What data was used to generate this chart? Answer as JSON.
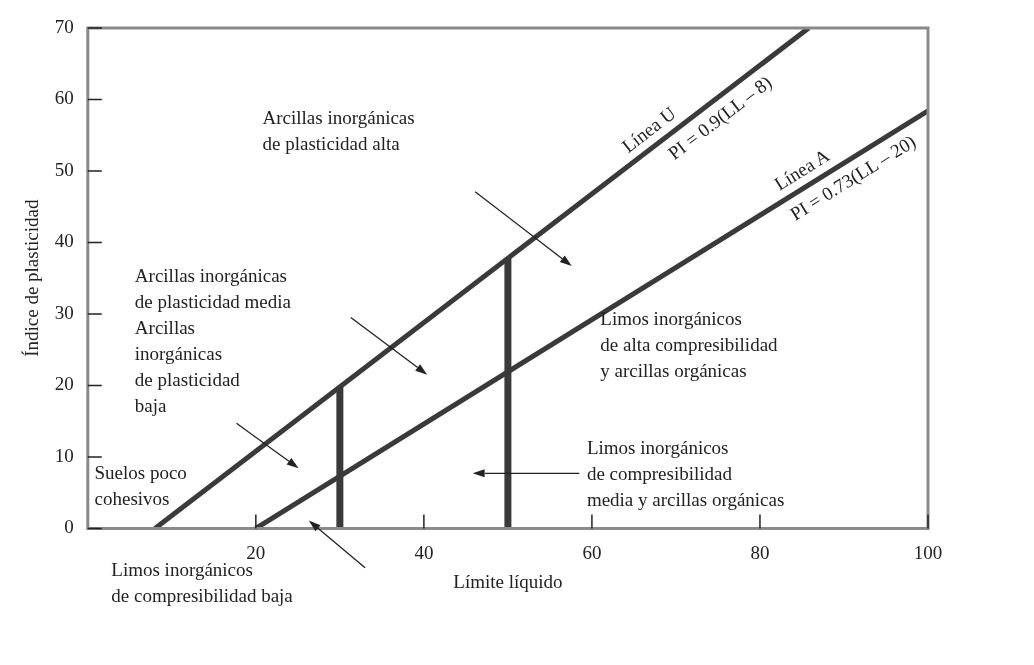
{
  "chart_data": {
    "type": "line",
    "xlabel": "Límite líquido",
    "ylabel": "Índice de plasticidad",
    "xlim": [
      0,
      100
    ],
    "ylim": [
      0,
      70
    ],
    "xticks": [
      20,
      40,
      60,
      80,
      100
    ],
    "yticks": [
      0,
      10,
      20,
      30,
      40,
      50,
      60,
      70
    ],
    "marker": "none",
    "line_style": "solid",
    "series": [
      {
        "name": "Línea U",
        "color": "#3a3a3a",
        "x": [
          8,
          85.8
        ],
        "values": [
          0,
          70
        ]
      },
      {
        "name": "Línea A",
        "color": "#3a3a3a",
        "x": [
          20,
          100
        ],
        "values": [
          0,
          58.4
        ]
      },
      {
        "color": "#3a3a3a",
        "x": [
          30,
          30
        ],
        "values": [
          0,
          19.8
        ]
      },
      {
        "color": "#3a3a3a",
        "x": [
          50,
          50
        ],
        "values": [
          0,
          37.8
        ]
      }
    ],
    "annotations": [
      "Arcillas inorgánicas de plasticidad alta",
      "Arcillas inorgánicas de plasticidad media",
      "Arcillas inorgánicas de plasticidad baja",
      "Suelos poco cohesivos",
      "Limos inorgánicos de compresibilidad baja",
      "Limos inorgánicos de alta compresibilidad y arcillas orgánicas",
      "Limos inorgánicos de compresibilidad media y arcillas orgánicas",
      {
        "text": "PI = 0.9(LL – 8)",
        "x": 74,
        "y": 59.4
      },
      {
        "text": "PI = 0.73(LL – 20)",
        "x": 90,
        "y": 51.1
      }
    ]
  }
}
